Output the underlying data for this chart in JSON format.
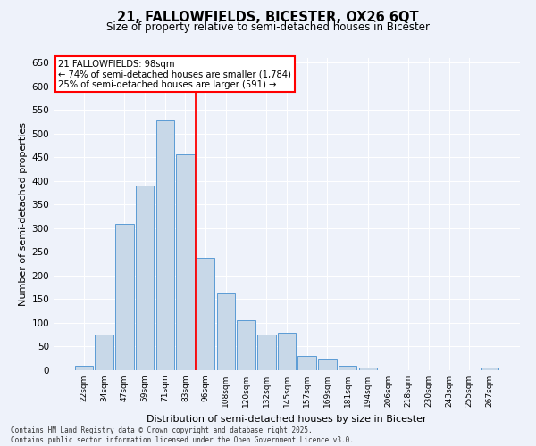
{
  "title": "21, FALLOWFIELDS, BICESTER, OX26 6QT",
  "subtitle": "Size of property relative to semi-detached houses in Bicester",
  "xlabel": "Distribution of semi-detached houses by size in Bicester",
  "ylabel": "Number of semi-detached properties",
  "categories": [
    "22sqm",
    "34sqm",
    "47sqm",
    "59sqm",
    "71sqm",
    "83sqm",
    "96sqm",
    "108sqm",
    "120sqm",
    "132sqm",
    "145sqm",
    "157sqm",
    "169sqm",
    "181sqm",
    "194sqm",
    "206sqm",
    "218sqm",
    "230sqm",
    "243sqm",
    "255sqm",
    "267sqm"
  ],
  "values": [
    10,
    76,
    310,
    390,
    528,
    456,
    238,
    162,
    106,
    76,
    80,
    30,
    22,
    9,
    5,
    0,
    0,
    0,
    0,
    0,
    5
  ],
  "bar_color": "#c8d8e8",
  "bar_edge_color": "#5b9bd5",
  "red_line_x": 6,
  "property_label": "21 FALLOWFIELDS: 98sqm",
  "annotation_line1": "← 74% of semi-detached houses are smaller (1,784)",
  "annotation_line2": "25% of semi-detached houses are larger (591) →",
  "ylim": [
    0,
    660
  ],
  "yticks": [
    0,
    50,
    100,
    150,
    200,
    250,
    300,
    350,
    400,
    450,
    500,
    550,
    600,
    650
  ],
  "background_color": "#eef2fa",
  "grid_color": "#ffffff",
  "footer_line1": "Contains HM Land Registry data © Crown copyright and database right 2025.",
  "footer_line2": "Contains public sector information licensed under the Open Government Licence v3.0."
}
